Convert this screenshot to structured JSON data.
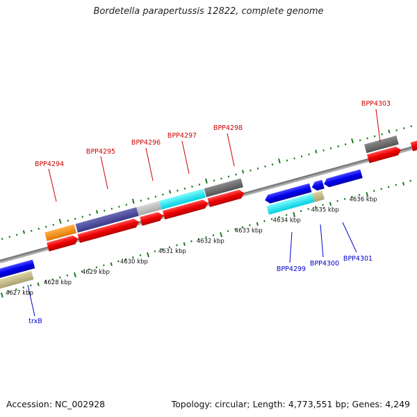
{
  "title": "Bordetella parapertussis 12822, complete genome",
  "footer": {
    "accession": "Accession: NC_002928",
    "topology": "Topology: circular; Length: 4,773,551 bp; Genes: 4,249"
  },
  "colors": {
    "plus_label": "#cc0000",
    "minus_label": "#0000cc",
    "tick": "#1a7a1a",
    "backbone": "#888888"
  },
  "scale_labels": [
    "4627 kbp",
    "4628 kbp",
    "4629 kbp",
    "4630 kbp",
    "4631 kbp",
    "4632 kbp",
    "4633 kbp",
    "4634 kbp",
    "4635 kbp",
    "4636 kbp"
  ],
  "genes_plus": [
    "BPP4294",
    "BPP4295",
    "BPP4296",
    "BPP4297",
    "BPP4298",
    "BPP4303"
  ],
  "genes_minus": [
    "trxB",
    "BPP4299",
    "BPP4300",
    "BPP4301"
  ]
}
